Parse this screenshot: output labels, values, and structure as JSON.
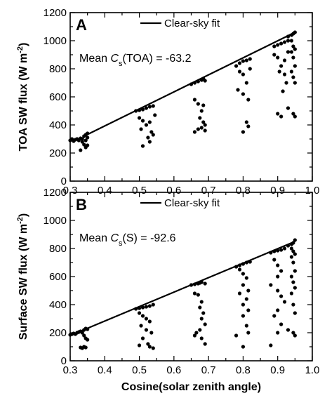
{
  "chart_data": [
    {
      "type": "scatter",
      "panel_label": "A",
      "ylabel": "TOA  SW  flux  (W m",
      "ylabel_sup": "-2",
      "ylabel_close": ")",
      "xlabel": "",
      "xlim": [
        0.3,
        1.0
      ],
      "ylim": [
        0,
        1200
      ],
      "xticks": [
        "0.3",
        "0.4",
        "0.5",
        "0.6",
        "0.7",
        "0.8",
        "0.9",
        "1.0"
      ],
      "yticks": [
        "0",
        "200",
        "400",
        "600",
        "800",
        "1000",
        "1200"
      ],
      "grid": false,
      "legend": {
        "position": "top-center",
        "entries": [
          "Clear-sky fit"
        ]
      },
      "annotation": {
        "prefix": "Mean ",
        "symbol": "C",
        "subscript": "s",
        "suffix": "(TOA) = -63.2"
      },
      "fit_line": {
        "x": [
          0.34,
          0.95
        ],
        "y": [
          320,
          1060
        ]
      },
      "series": [
        {
          "points": [
            [
              0.3,
              290
            ],
            [
              0.305,
              300
            ],
            [
              0.31,
              285
            ],
            [
              0.315,
              295
            ],
            [
              0.32,
              300
            ],
            [
              0.325,
              290
            ],
            [
              0.33,
              305
            ],
            [
              0.335,
              300
            ],
            [
              0.34,
              320
            ],
            [
              0.345,
              330
            ],
            [
              0.35,
              340
            ],
            [
              0.335,
              280
            ],
            [
              0.34,
              260
            ],
            [
              0.345,
              240
            ],
            [
              0.35,
              255
            ],
            [
              0.33,
              220
            ],
            [
              0.345,
              290
            ],
            [
              0.35,
              310
            ],
            [
              0.49,
              500
            ],
            [
              0.5,
              505
            ],
            [
              0.51,
              510
            ],
            [
              0.52,
              520
            ],
            [
              0.53,
              530
            ],
            [
              0.54,
              535
            ],
            [
              0.5,
              450
            ],
            [
              0.51,
              430
            ],
            [
              0.505,
              370
            ],
            [
              0.52,
              400
            ],
            [
              0.53,
              420
            ],
            [
              0.535,
              350
            ],
            [
              0.54,
              330
            ],
            [
              0.525,
              310
            ],
            [
              0.51,
              250
            ],
            [
              0.53,
              280
            ],
            [
              0.545,
              470
            ],
            [
              0.65,
              690
            ],
            [
              0.66,
              700
            ],
            [
              0.67,
              710
            ],
            [
              0.68,
              720
            ],
            [
              0.685,
              730
            ],
            [
              0.69,
              715
            ],
            [
              0.66,
              580
            ],
            [
              0.67,
              550
            ],
            [
              0.68,
              500
            ],
            [
              0.675,
              450
            ],
            [
              0.685,
              420
            ],
            [
              0.69,
              400
            ],
            [
              0.66,
              350
            ],
            [
              0.67,
              370
            ],
            [
              0.68,
              380
            ],
            [
              0.69,
              360
            ],
            [
              0.685,
              540
            ],
            [
              0.78,
              820
            ],
            [
              0.79,
              840
            ],
            [
              0.8,
              855
            ],
            [
              0.81,
              860
            ],
            [
              0.82,
              870
            ],
            [
              0.79,
              780
            ],
            [
              0.8,
              760
            ],
            [
              0.81,
              700
            ],
            [
              0.785,
              650
            ],
            [
              0.8,
              620
            ],
            [
              0.815,
              580
            ],
            [
              0.82,
              800
            ],
            [
              0.81,
              420
            ],
            [
              0.8,
              350
            ],
            [
              0.815,
              390
            ],
            [
              0.89,
              960
            ],
            [
              0.9,
              970
            ],
            [
              0.91,
              980
            ],
            [
              0.92,
              990
            ],
            [
              0.93,
              1000
            ],
            [
              0.89,
              900
            ],
            [
              0.9,
              880
            ],
            [
              0.91,
              820
            ],
            [
              0.905,
              780
            ],
            [
              0.92,
              760
            ],
            [
              0.925,
              700
            ],
            [
              0.915,
              640
            ],
            [
              0.9,
              480
            ],
            [
              0.91,
              460
            ],
            [
              0.93,
              920
            ],
            [
              0.92,
              860
            ],
            [
              0.93,
              1030
            ],
            [
              0.94,
              1040
            ],
            [
              0.945,
              1050
            ],
            [
              0.95,
              1060
            ],
            [
              0.94,
              1000
            ],
            [
              0.945,
              960
            ],
            [
              0.95,
              940
            ],
            [
              0.94,
              920
            ],
            [
              0.945,
              880
            ],
            [
              0.95,
              820
            ],
            [
              0.94,
              780
            ],
            [
              0.945,
              740
            ],
            [
              0.95,
              700
            ],
            [
              0.93,
              520
            ],
            [
              0.945,
              480
            ],
            [
              0.95,
              460
            ]
          ]
        }
      ]
    },
    {
      "type": "scatter",
      "panel_label": "B",
      "ylabel": "Surface  SW  flux  (W m",
      "ylabel_sup": "-2",
      "ylabel_close": ")",
      "xlabel": "Cosine(solar  zenith  angle)",
      "xlim": [
        0.3,
        1.0
      ],
      "ylim": [
        0,
        1200
      ],
      "xticks": [
        "0.3",
        "0.4",
        "0.5",
        "0.6",
        "0.7",
        "0.8",
        "0.9",
        "1.0"
      ],
      "yticks": [
        "0",
        "200",
        "400",
        "600",
        "800",
        "1000",
        "1200"
      ],
      "grid": false,
      "legend": {
        "position": "top-center",
        "entries": [
          "Clear-sky fit"
        ]
      },
      "annotation": {
        "prefix": "Mean ",
        "symbol": "C",
        "subscript": "s",
        "suffix": "(S) = -92.6"
      },
      "fit_line": {
        "x": [
          0.3,
          0.95
        ],
        "y": [
          180,
          850
        ]
      },
      "series": [
        {
          "points": [
            [
              0.3,
              185
            ],
            [
              0.305,
              190
            ],
            [
              0.31,
              195
            ],
            [
              0.315,
              190
            ],
            [
              0.32,
              200
            ],
            [
              0.325,
              205
            ],
            [
              0.33,
              210
            ],
            [
              0.335,
              200
            ],
            [
              0.34,
              220
            ],
            [
              0.345,
              230
            ],
            [
              0.35,
              225
            ],
            [
              0.34,
              180
            ],
            [
              0.345,
              160
            ],
            [
              0.35,
              150
            ],
            [
              0.33,
              95
            ],
            [
              0.335,
              90
            ],
            [
              0.34,
              100
            ],
            [
              0.345,
              95
            ],
            [
              0.49,
              370
            ],
            [
              0.5,
              375
            ],
            [
              0.51,
              380
            ],
            [
              0.52,
              385
            ],
            [
              0.53,
              390
            ],
            [
              0.54,
              400
            ],
            [
              0.5,
              340
            ],
            [
              0.51,
              320
            ],
            [
              0.52,
              300
            ],
            [
              0.53,
              280
            ],
            [
              0.505,
              250
            ],
            [
              0.52,
              220
            ],
            [
              0.535,
              200
            ],
            [
              0.51,
              160
            ],
            [
              0.525,
              120
            ],
            [
              0.53,
              100
            ],
            [
              0.54,
              90
            ],
            [
              0.5,
              110
            ],
            [
              0.65,
              540
            ],
            [
              0.66,
              545
            ],
            [
              0.67,
              550
            ],
            [
              0.675,
              555
            ],
            [
              0.68,
              560
            ],
            [
              0.69,
              550
            ],
            [
              0.66,
              480
            ],
            [
              0.67,
              470
            ],
            [
              0.68,
              420
            ],
            [
              0.675,
              380
            ],
            [
              0.685,
              340
            ],
            [
              0.68,
              300
            ],
            [
              0.69,
              260
            ],
            [
              0.675,
              220
            ],
            [
              0.665,
              200
            ],
            [
              0.68,
              160
            ],
            [
              0.69,
              120
            ],
            [
              0.66,
              180
            ],
            [
              0.78,
              670
            ],
            [
              0.79,
              680
            ],
            [
              0.8,
              690
            ],
            [
              0.81,
              700
            ],
            [
              0.82,
              705
            ],
            [
              0.79,
              650
            ],
            [
              0.8,
              620
            ],
            [
              0.81,
              590
            ],
            [
              0.8,
              540
            ],
            [
              0.815,
              500
            ],
            [
              0.79,
              480
            ],
            [
              0.81,
              440
            ],
            [
              0.8,
              400
            ],
            [
              0.815,
              360
            ],
            [
              0.8,
              320
            ],
            [
              0.81,
              250
            ],
            [
              0.815,
              200
            ],
            [
              0.78,
              180
            ],
            [
              0.8,
              100
            ],
            [
              0.88,
              770
            ],
            [
              0.89,
              780
            ],
            [
              0.9,
              785
            ],
            [
              0.91,
              790
            ],
            [
              0.92,
              800
            ],
            [
              0.89,
              720
            ],
            [
              0.9,
              680
            ],
            [
              0.91,
              640
            ],
            [
              0.9,
              600
            ],
            [
              0.88,
              540
            ],
            [
              0.9,
              500
            ],
            [
              0.91,
              460
            ],
            [
              0.92,
              420
            ],
            [
              0.9,
              360
            ],
            [
              0.89,
              320
            ],
            [
              0.91,
              260
            ],
            [
              0.9,
              200
            ],
            [
              0.88,
              110
            ],
            [
              0.93,
              820
            ],
            [
              0.94,
              830
            ],
            [
              0.945,
              840
            ],
            [
              0.95,
              860
            ],
            [
              0.94,
              800
            ],
            [
              0.945,
              780
            ],
            [
              0.95,
              760
            ],
            [
              0.94,
              740
            ],
            [
              0.945,
              700
            ],
            [
              0.95,
              640
            ],
            [
              0.94,
              600
            ],
            [
              0.945,
              560
            ],
            [
              0.95,
              520
            ],
            [
              0.94,
              480
            ],
            [
              0.945,
              400
            ],
            [
              0.95,
              340
            ],
            [
              0.93,
              220
            ],
            [
              0.945,
              200
            ],
            [
              0.95,
              180
            ]
          ]
        }
      ]
    }
  ]
}
